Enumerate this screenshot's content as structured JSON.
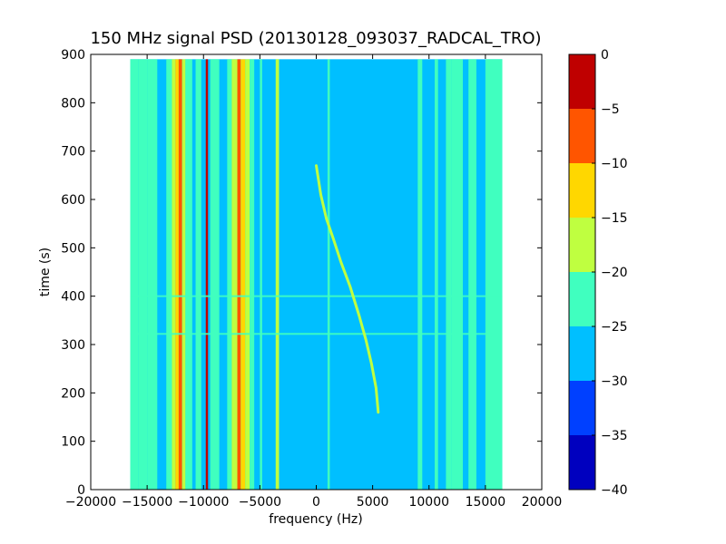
{
  "chart_data": {
    "type": "heatmap",
    "title": "150 MHz signal PSD (20130128_093037_RADCAL_TRO)",
    "xlabel": "frequency (Hz)",
    "ylabel": "time (s)",
    "xlim": [
      -20000,
      20000
    ],
    "ylim": [
      0,
      900
    ],
    "xticks": [
      -20000,
      -15000,
      -10000,
      -5000,
      0,
      5000,
      10000,
      15000,
      20000
    ],
    "xtick_labels": [
      "−20000",
      "−15000",
      "−10000",
      "−5000",
      "0",
      "5000",
      "10000",
      "15000",
      "20000"
    ],
    "yticks": [
      0,
      100,
      200,
      300,
      400,
      500,
      600,
      700,
      800,
      900
    ],
    "ytick_labels": [
      "0",
      "100",
      "200",
      "300",
      "400",
      "500",
      "600",
      "700",
      "800",
      "900"
    ],
    "data_extent": {
      "freq": [
        -16500,
        16500
      ],
      "time": [
        0,
        890
      ]
    },
    "background_level": -27.5,
    "colorbar": {
      "levels": [
        -40,
        -35,
        -30,
        -25,
        -20,
        -15,
        -10,
        -5,
        0
      ],
      "tick_labels": [
        "−40",
        "−35",
        "−30",
        "−25",
        "−20",
        "−15",
        "−10",
        "−5",
        "0"
      ],
      "colors": [
        "#0000bf",
        "#0040ff",
        "#00bfff",
        "#40ffbf",
        "#bfff40",
        "#ffd700",
        "#ff5500",
        "#bf0000"
      ]
    },
    "vertical_bands": [
      {
        "f0": -16500,
        "f1": -15800,
        "level": -22.5
      },
      {
        "f0": -15800,
        "f1": -15000,
        "level": -25
      },
      {
        "f0": -15000,
        "f1": -14100,
        "level": -22.5
      },
      {
        "f0": -13300,
        "f1": -12800,
        "level": -22.5
      },
      {
        "f0": -12800,
        "f1": -12500,
        "level": -17.5
      },
      {
        "f0": -12500,
        "f1": -12200,
        "level": -12.5
      },
      {
        "f0": -12200,
        "f1": -11900,
        "level": -7.5
      },
      {
        "f0": -11900,
        "f1": -11600,
        "level": -17.5
      },
      {
        "f0": -11600,
        "f1": -11000,
        "level": -22.5
      },
      {
        "f0": -10700,
        "f1": -10200,
        "level": -22.5
      },
      {
        "f0": -9800,
        "f1": -9600,
        "level": -2.5
      },
      {
        "f0": -9400,
        "f1": -8600,
        "level": -22.5
      },
      {
        "f0": -7900,
        "f1": -7500,
        "level": -22.5
      },
      {
        "f0": -7500,
        "f1": -7000,
        "level": -17.5
      },
      {
        "f0": -7000,
        "f1": -6700,
        "level": -7.5
      },
      {
        "f0": -6700,
        "f1": -6300,
        "level": -12.5
      },
      {
        "f0": -6300,
        "f1": -5900,
        "level": -17.5
      },
      {
        "f0": -5900,
        "f1": -5500,
        "level": -22.5
      },
      {
        "f0": -5000,
        "f1": -4800,
        "level": -22.5
      },
      {
        "f0": -3600,
        "f1": -3300,
        "level": -17.5
      },
      {
        "f0": 1000,
        "f1": 1200,
        "level": -22.5
      },
      {
        "f0": 9000,
        "f1": 9400,
        "level": -22.5
      },
      {
        "f0": 10500,
        "f1": 10800,
        "level": -22.5
      },
      {
        "f0": 11500,
        "f1": 12000,
        "level": -22.5
      },
      {
        "f0": 12000,
        "f1": 13000,
        "level": -22.5
      },
      {
        "f0": 13500,
        "f1": 14200,
        "level": -22.5
      },
      {
        "f0": 15000,
        "f1": 16500,
        "level": -22.5
      }
    ],
    "horizontal_lines": [
      {
        "t": 322,
        "f0": -16500,
        "f1": 16500,
        "level": -22.5
      },
      {
        "t": 400,
        "f0": -16500,
        "f1": 16500,
        "level": -22.5
      }
    ],
    "chirp_track": {
      "level": -17.5,
      "points": [
        [
          0,
          670
        ],
        [
          400,
          610
        ],
        [
          900,
          560
        ],
        [
          1500,
          520
        ],
        [
          2200,
          470
        ],
        [
          3000,
          420
        ],
        [
          3800,
          360
        ],
        [
          4400,
          310
        ],
        [
          4900,
          260
        ],
        [
          5300,
          210
        ],
        [
          5500,
          160
        ]
      ]
    }
  }
}
